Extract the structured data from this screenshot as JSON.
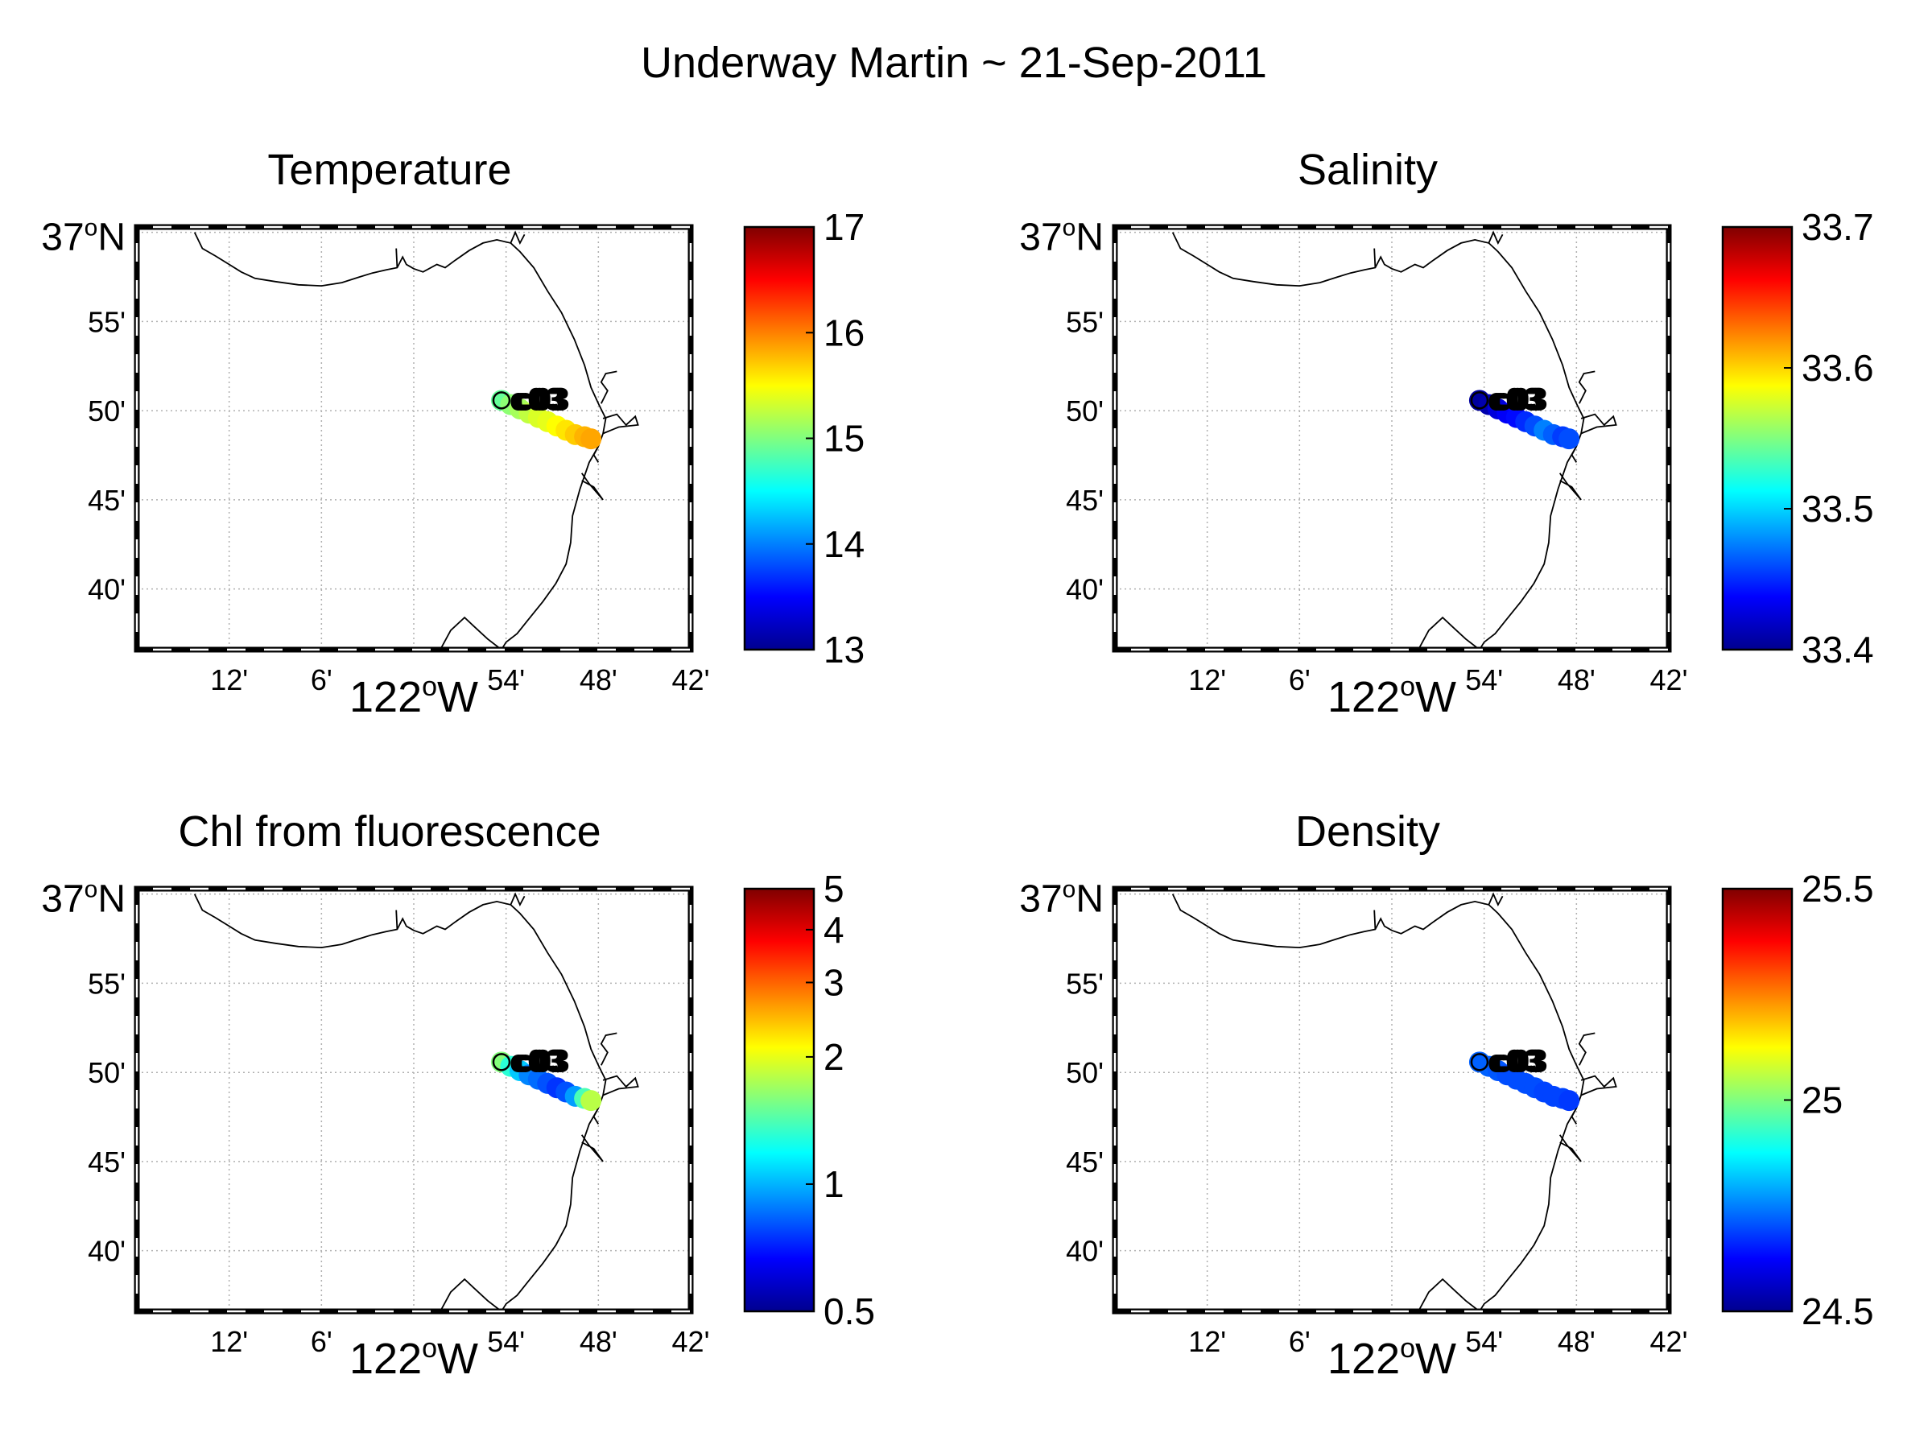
{
  "figure_title": "Underway Martin ~ 21-Sep-2011",
  "station_label": "c03",
  "lat_ticks": [
    {
      "value": 37.0,
      "label": "37",
      "deg": true,
      "hemi": "N"
    },
    {
      "value": 36.9167,
      "label": "55'"
    },
    {
      "value": 36.8333,
      "label": "50'"
    },
    {
      "value": 36.75,
      "label": "45'"
    },
    {
      "value": 36.6667,
      "label": "40'"
    }
  ],
  "lon_ticks": [
    {
      "value": -122.2,
      "label": "12'"
    },
    {
      "value": -122.1,
      "label": "6'"
    },
    {
      "value": -122.0,
      "label": "122",
      "deg": true,
      "hemi": "W"
    },
    {
      "value": -121.9,
      "label": "54'"
    },
    {
      "value": -121.8,
      "label": "48'"
    },
    {
      "value": -121.7,
      "label": "42'"
    }
  ],
  "map_extent": {
    "lon": [
      -122.3,
      -121.7
    ],
    "lat": [
      36.61,
      37.005
    ]
  },
  "coastline": [
    [
      -122.2375,
      37.0
    ],
    [
      -122.229,
      36.985
    ],
    [
      -122.215,
      36.978
    ],
    [
      -122.2,
      36.97
    ],
    [
      -122.187,
      36.963
    ],
    [
      -122.172,
      36.957
    ],
    [
      -122.15,
      36.954
    ],
    [
      -122.125,
      36.951
    ],
    [
      -122.1,
      36.95
    ],
    [
      -122.078,
      36.953
    ],
    [
      -122.06,
      36.958
    ],
    [
      -122.045,
      36.962
    ],
    [
      -122.03,
      36.965
    ],
    [
      -122.018,
      36.967
    ],
    [
      -122.012,
      36.977
    ],
    [
      -122.008,
      36.97
    ],
    [
      -122.0,
      36.966
    ],
    [
      -121.99,
      36.963
    ],
    [
      -121.975,
      36.97
    ],
    [
      -121.966,
      36.967
    ],
    [
      -121.955,
      36.974
    ],
    [
      -121.94,
      36.983
    ],
    [
      -121.925,
      36.99
    ],
    [
      -121.91,
      36.993
    ],
    [
      -121.895,
      36.99
    ],
    [
      -121.885,
      36.982
    ],
    [
      -121.87,
      36.967
    ],
    [
      -121.855,
      36.945
    ],
    [
      -121.84,
      36.925
    ],
    [
      -121.826,
      36.9
    ],
    [
      -121.815,
      36.876
    ],
    [
      -121.808,
      36.855
    ],
    [
      -121.8,
      36.84
    ],
    [
      -121.792,
      36.826
    ],
    [
      -121.795,
      36.812
    ],
    [
      -121.8,
      36.8
    ],
    [
      -121.81,
      36.785
    ],
    [
      -121.82,
      36.76
    ],
    [
      -121.828,
      36.735
    ],
    [
      -121.83,
      36.71
    ],
    [
      -121.835,
      36.69
    ],
    [
      -121.846,
      36.672
    ],
    [
      -121.86,
      36.655
    ],
    [
      -121.876,
      36.638
    ],
    [
      -121.888,
      36.625
    ],
    [
      -121.9,
      36.617
    ],
    [
      -121.905,
      36.61
    ]
  ],
  "coast_features": [
    [
      [
        -121.895,
        36.99
      ],
      [
        -121.89,
        37.0
      ],
      [
        -121.885,
        36.99
      ],
      [
        -121.88,
        36.998
      ]
    ],
    [
      [
        -122.018,
        36.967
      ],
      [
        -122.019,
        36.985
      ]
    ],
    [
      [
        -121.797,
        36.84
      ],
      [
        -121.79,
        36.852
      ],
      [
        -121.797,
        36.86
      ],
      [
        -121.792,
        36.868
      ],
      [
        -121.78,
        36.87
      ]
    ],
    [
      [
        -121.795,
        36.826
      ],
      [
        -121.78,
        36.83
      ],
      [
        -121.77,
        36.82
      ],
      [
        -121.76,
        36.828
      ],
      [
        -121.757,
        36.82
      ],
      [
        -121.778,
        36.818
      ],
      [
        -121.795,
        36.812
      ]
    ],
    [
      [
        -121.8,
        36.8
      ],
      [
        -121.805,
        36.792
      ],
      [
        -121.8,
        36.785
      ]
    ],
    [
      [
        -121.818,
        36.775
      ],
      [
        -121.81,
        36.765
      ],
      [
        -121.795,
        36.75
      ],
      [
        -121.805,
        36.762
      ],
      [
        -121.818,
        36.768
      ]
    ],
    [
      [
        -121.905,
        36.61
      ],
      [
        -121.92,
        36.62
      ],
      [
        -121.935,
        36.632
      ],
      [
        -121.945,
        36.64
      ],
      [
        -121.96,
        36.628
      ],
      [
        -121.97,
        36.612
      ]
    ]
  ],
  "station": {
    "lon": -121.905,
    "lat": 36.843
  },
  "colormap": [
    "#00008f",
    "#0000ff",
    "#0080ff",
    "#00ffff",
    "#80ff80",
    "#ffff00",
    "#ff8000",
    "#ff0000",
    "#800000"
  ],
  "panels": [
    {
      "title": "Temperature",
      "cbar_min": 13,
      "cbar_max": 17,
      "cbar_scale": "linear",
      "cbar_ticks": [
        {
          "value": 13,
          "label": "13"
        },
        {
          "value": 14,
          "label": "14"
        },
        {
          "value": 15,
          "label": "15"
        },
        {
          "value": 16,
          "label": "16"
        },
        {
          "value": 17,
          "label": "17"
        }
      ],
      "track": [
        {
          "lon": -121.905,
          "lat": 36.843,
          "value": 14.9
        },
        {
          "lon": -121.895,
          "lat": 36.839,
          "value": 15.05
        },
        {
          "lon": -121.885,
          "lat": 36.835,
          "value": 15.15
        },
        {
          "lon": -121.875,
          "lat": 36.831,
          "value": 15.25
        },
        {
          "lon": -121.865,
          "lat": 36.827,
          "value": 15.35
        },
        {
          "lon": -121.855,
          "lat": 36.823,
          "value": 15.4
        },
        {
          "lon": -121.845,
          "lat": 36.819,
          "value": 15.5
        },
        {
          "lon": -121.835,
          "lat": 36.815,
          "value": 15.6
        },
        {
          "lon": -121.825,
          "lat": 36.811,
          "value": 15.7
        },
        {
          "lon": -121.815,
          "lat": 36.809,
          "value": 15.8
        },
        {
          "lon": -121.808,
          "lat": 36.807,
          "value": 15.85
        }
      ]
    },
    {
      "title": "Salinity",
      "cbar_min": 33.4,
      "cbar_max": 33.7,
      "cbar_scale": "linear",
      "cbar_ticks": [
        {
          "value": 33.4,
          "label": "33.4"
        },
        {
          "value": 33.5,
          "label": "33.5"
        },
        {
          "value": 33.6,
          "label": "33.6"
        },
        {
          "value": 33.7,
          "label": "33.7"
        }
      ],
      "track": [
        {
          "lon": -121.905,
          "lat": 36.843,
          "value": 33.405
        },
        {
          "lon": -121.895,
          "lat": 36.839,
          "value": 33.41
        },
        {
          "lon": -121.885,
          "lat": 36.835,
          "value": 33.425
        },
        {
          "lon": -121.875,
          "lat": 36.831,
          "value": 33.435
        },
        {
          "lon": -121.865,
          "lat": 36.827,
          "value": 33.44
        },
        {
          "lon": -121.855,
          "lat": 36.823,
          "value": 33.45
        },
        {
          "lon": -121.845,
          "lat": 36.819,
          "value": 33.46
        },
        {
          "lon": -121.835,
          "lat": 36.815,
          "value": 33.475
        },
        {
          "lon": -121.825,
          "lat": 36.811,
          "value": 33.465
        },
        {
          "lon": -121.815,
          "lat": 36.809,
          "value": 33.455
        },
        {
          "lon": -121.808,
          "lat": 36.807,
          "value": 33.46
        }
      ]
    },
    {
      "title": "Chl from fluorescence",
      "cbar_min": 0.5,
      "cbar_max": 5,
      "cbar_scale": "log",
      "cbar_ticks": [
        {
          "value": 0.5,
          "label": "0.5"
        },
        {
          "value": 1,
          "label": "1"
        },
        {
          "value": 2,
          "label": "2"
        },
        {
          "value": 3,
          "label": "3"
        },
        {
          "value": 4,
          "label": "4"
        },
        {
          "value": 5,
          "label": "5"
        }
      ],
      "track": [
        {
          "lon": -121.905,
          "lat": 36.843,
          "value": 1.6
        },
        {
          "lon": -121.895,
          "lat": 36.839,
          "value": 1.3
        },
        {
          "lon": -121.885,
          "lat": 36.835,
          "value": 1.05
        },
        {
          "lon": -121.875,
          "lat": 36.831,
          "value": 0.9
        },
        {
          "lon": -121.865,
          "lat": 36.827,
          "value": 0.85
        },
        {
          "lon": -121.855,
          "lat": 36.823,
          "value": 0.8
        },
        {
          "lon": -121.845,
          "lat": 36.819,
          "value": 0.75
        },
        {
          "lon": -121.835,
          "lat": 36.815,
          "value": 0.8
        },
        {
          "lon": -121.825,
          "lat": 36.811,
          "value": 0.95
        },
        {
          "lon": -121.815,
          "lat": 36.809,
          "value": 1.4
        },
        {
          "lon": -121.808,
          "lat": 36.807,
          "value": 1.8
        }
      ]
    },
    {
      "title": "Density",
      "cbar_min": 24.5,
      "cbar_max": 25.5,
      "cbar_scale": "linear",
      "cbar_ticks": [
        {
          "value": 24.5,
          "label": "24.5"
        },
        {
          "value": 25,
          "label": "25"
        },
        {
          "value": 25.5,
          "label": "25.5"
        }
      ],
      "track": [
        {
          "lon": -121.905,
          "lat": 36.843,
          "value": 24.72
        },
        {
          "lon": -121.895,
          "lat": 36.839,
          "value": 24.72
        },
        {
          "lon": -121.885,
          "lat": 36.835,
          "value": 24.71
        },
        {
          "lon": -121.875,
          "lat": 36.831,
          "value": 24.7
        },
        {
          "lon": -121.865,
          "lat": 36.827,
          "value": 24.7
        },
        {
          "lon": -121.855,
          "lat": 36.823,
          "value": 24.7
        },
        {
          "lon": -121.845,
          "lat": 36.819,
          "value": 24.7
        },
        {
          "lon": -121.835,
          "lat": 36.815,
          "value": 24.69
        },
        {
          "lon": -121.825,
          "lat": 36.811,
          "value": 24.69
        },
        {
          "lon": -121.815,
          "lat": 36.809,
          "value": 24.69
        },
        {
          "lon": -121.808,
          "lat": 36.807,
          "value": 24.68
        }
      ]
    }
  ]
}
